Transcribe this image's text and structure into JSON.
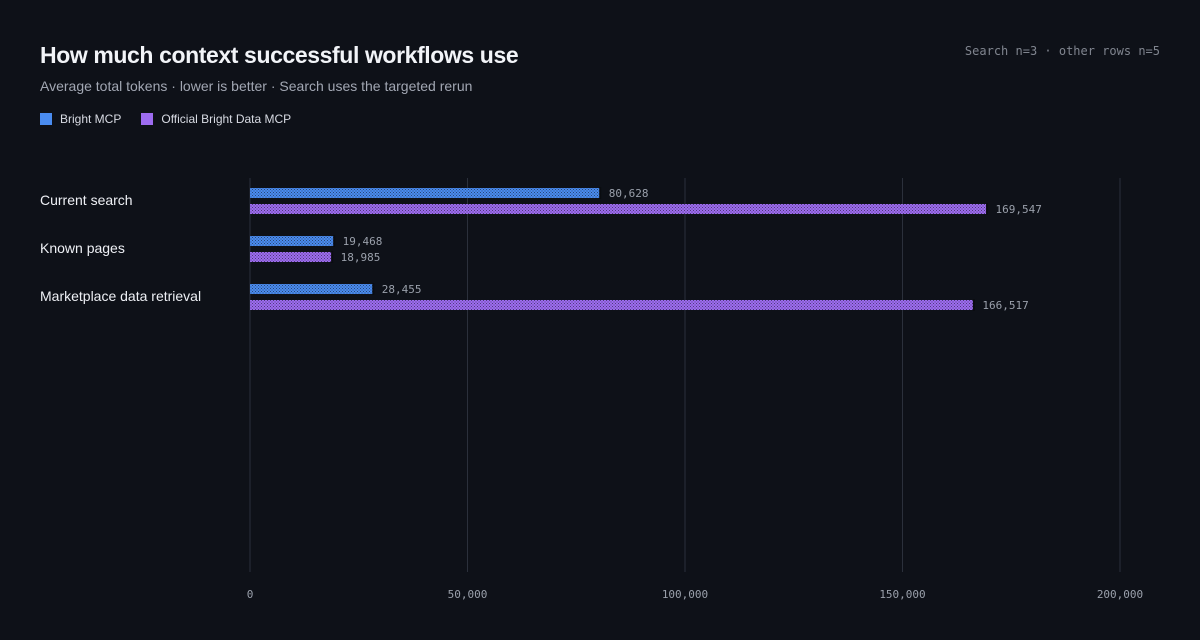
{
  "header": {
    "title": "How much context successful workflows use",
    "subtitle": "Average total tokens · lower is better · Search uses the targeted rerun",
    "sample_note": "Search n=3 · other rows n=5"
  },
  "legend": [
    {
      "label": "Bright MCP",
      "color": "#4a8cf0"
    },
    {
      "label": "Official Bright Data MCP",
      "color": "#9d6cf0"
    }
  ],
  "chart_data": {
    "type": "bar",
    "orientation": "horizontal",
    "title": "How much context successful workflows use",
    "subtitle": "Average total tokens · lower is better · Search uses the targeted rerun",
    "categories": [
      "Current search",
      "Known pages",
      "Marketplace data retrieval"
    ],
    "series": [
      {
        "name": "Bright MCP",
        "color": "#4a8cf0",
        "values": [
          80628,
          19468,
          28455
        ],
        "labels": [
          "80,628",
          "19,468",
          "28,455"
        ]
      },
      {
        "name": "Official Bright Data MCP",
        "color": "#9d6cf0",
        "values": [
          169547,
          18985,
          166517
        ],
        "labels": [
          "169,547",
          "18,985",
          "166,517"
        ]
      }
    ],
    "xlim": [
      0,
      200000
    ],
    "xticks": [
      0,
      50000,
      100000,
      150000,
      200000
    ],
    "xtick_labels": [
      "0",
      "50,000",
      "100,000",
      "150,000",
      "200,000"
    ],
    "grid": "vertical",
    "legend_position": "top-left"
  }
}
